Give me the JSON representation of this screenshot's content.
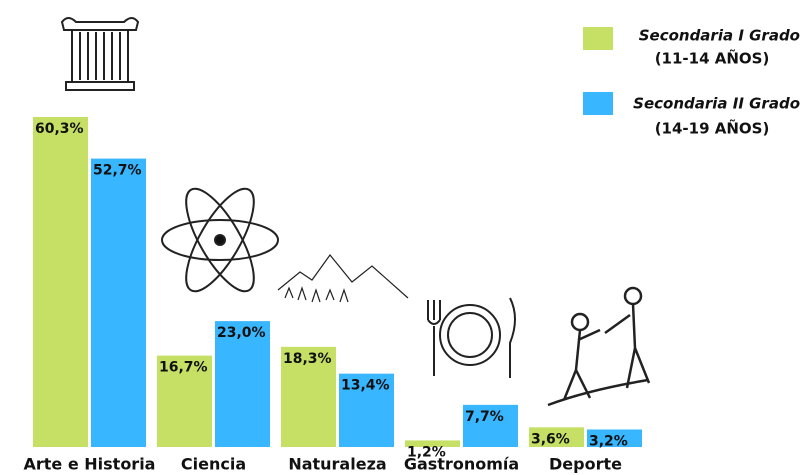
{
  "chart_data": {
    "type": "bar",
    "categories": [
      "Arte e Historia",
      "Ciencia",
      "Naturaleza",
      "Gastronomía",
      "Deporte"
    ],
    "series": [
      {
        "name": "Secondaria I Grado",
        "age_range": "(11-14 AÑOS)",
        "color": "#c5e065",
        "values": [
          60.3,
          16.7,
          18.3,
          1.2,
          3.6
        ],
        "value_labels": [
          "60,3%",
          "16,7%",
          "18,3%",
          "1,2%",
          "3,6%"
        ]
      },
      {
        "name": "Secondaria II Grado",
        "age_range": "(14-19 AÑOS)",
        "color": "#38b6ff",
        "values": [
          52.7,
          23.0,
          13.4,
          7.7,
          3.2
        ],
        "value_labels": [
          "52,7%",
          "23,0%",
          "13,4%",
          "7,7%",
          "3,2%"
        ]
      }
    ]
  }
}
